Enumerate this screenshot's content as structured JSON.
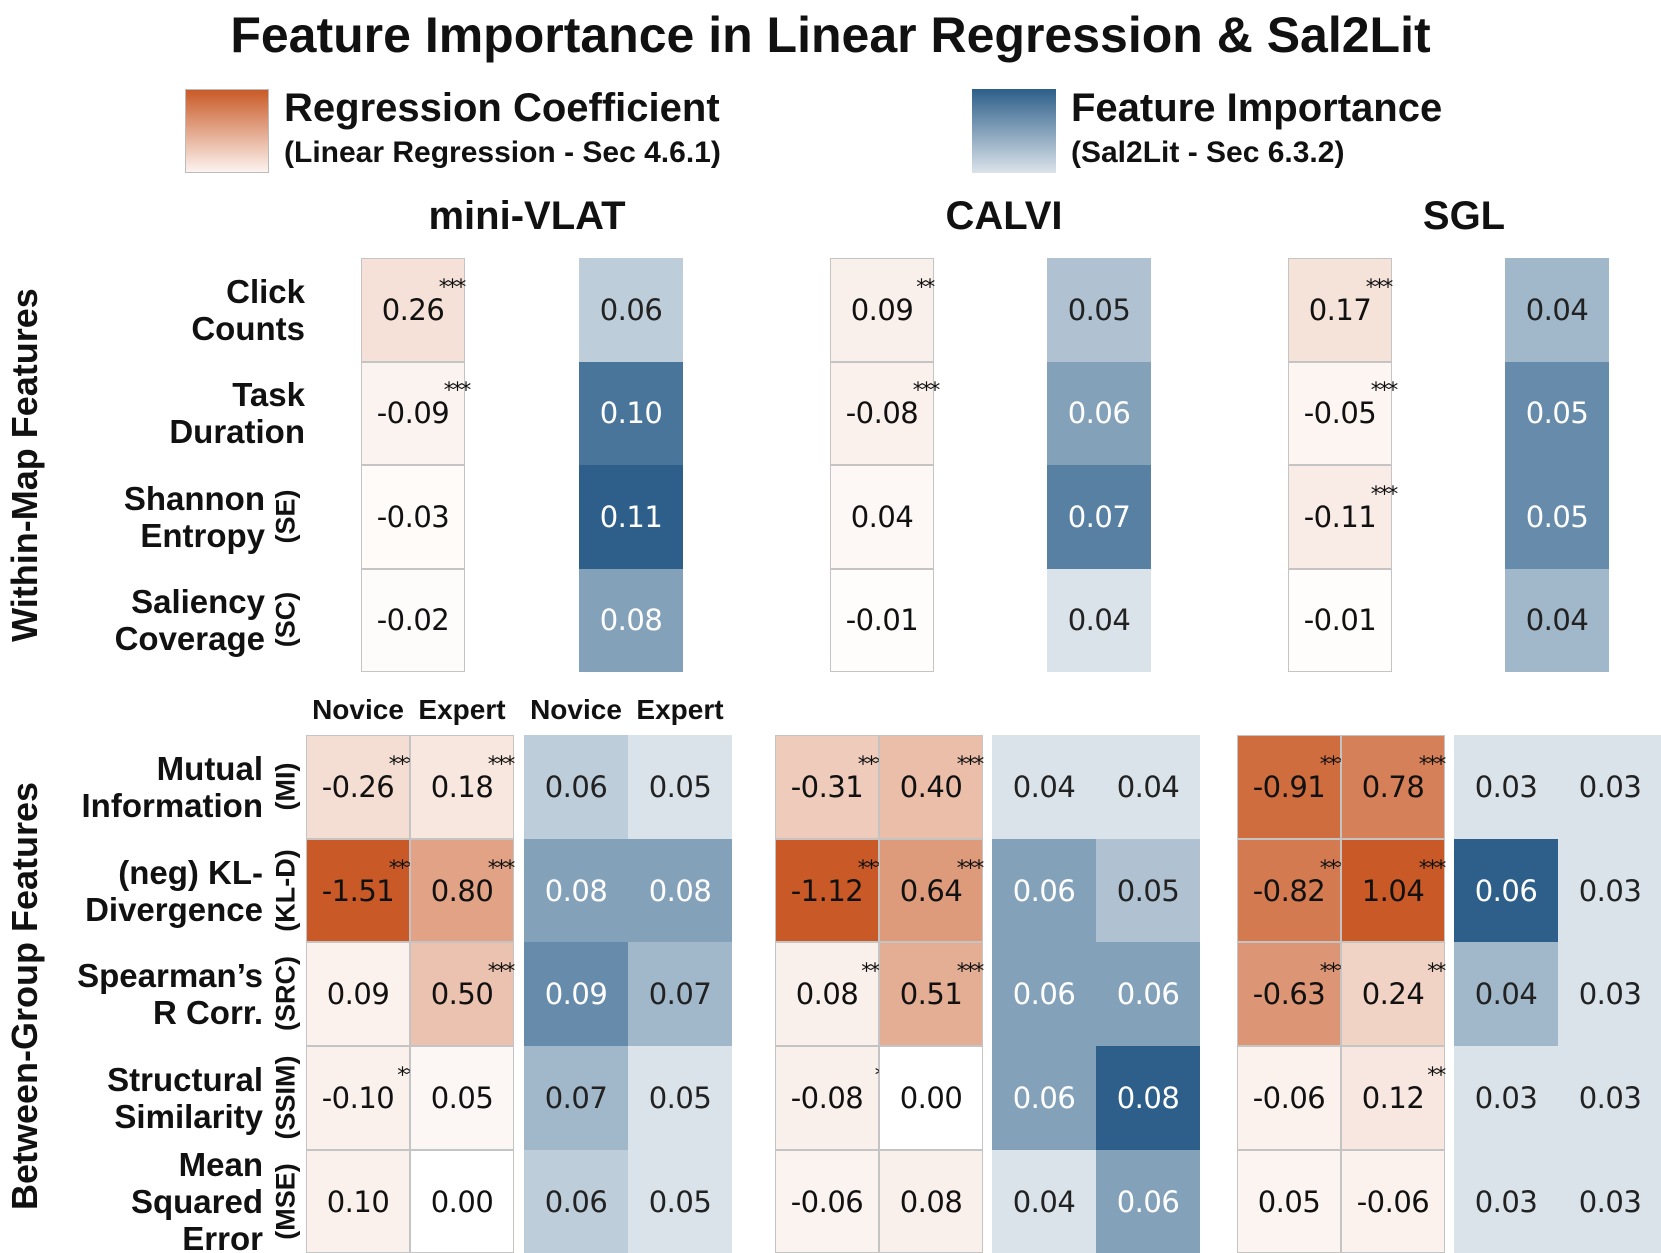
{
  "chart_data": {
    "type": "heatmap",
    "title": "Feature Importance in Linear Regression & Sal2Lit",
    "legend": [
      {
        "label": "Regression Coefficient",
        "sublabel": "(Linear Regression - Sec 4.6.1)",
        "color": "#c95a27"
      },
      {
        "label": "Feature Importance",
        "sublabel": "(Sal2Lit - Sec 6.3.2)",
        "color": "#2d5f8a"
      }
    ],
    "sections": {
      "within": "Within-Map Features",
      "between": "Between-Group Features"
    },
    "group_headers": [
      "Novice",
      "Expert",
      "Novice",
      "Expert"
    ],
    "within_rows": [
      {
        "lines": [
          "Click",
          "Counts"
        ],
        "abbr": ""
      },
      {
        "lines": [
          "Task",
          "Duration"
        ],
        "abbr": ""
      },
      {
        "lines": [
          "Shannon",
          "Entropy"
        ],
        "abbr": "(SE)"
      },
      {
        "lines": [
          "Saliency",
          "Coverage"
        ],
        "abbr": "(SC)"
      }
    ],
    "between_rows": [
      {
        "lines": [
          "Mutual",
          "Information"
        ],
        "abbr": "(MI)"
      },
      {
        "lines": [
          "(neg) KL-",
          "Divergence"
        ],
        "abbr": "(KL-D)"
      },
      {
        "lines": [
          "Spearman’s",
          "R Corr."
        ],
        "abbr": "(SRC)"
      },
      {
        "lines": [
          "Structural",
          "Similarity"
        ],
        "abbr": "(SSIM)"
      },
      {
        "lines": [
          "Mean",
          "Squared",
          "Error"
        ],
        "abbr": "(MSE)"
      }
    ],
    "datasets": [
      {
        "name": "mini-VLAT",
        "within": {
          "coefficient": [
            {
              "v": "0.26",
              "s": "***"
            },
            {
              "v": "-0.09",
              "s": "***"
            },
            {
              "v": "-0.03",
              "s": ""
            },
            {
              "v": "-0.02",
              "s": ""
            }
          ],
          "importance": [
            "0.06",
            "0.10",
            "0.11",
            "0.08"
          ]
        },
        "between": {
          "coefficient_novice": [
            {
              "v": "-0.26",
              "s": "***"
            },
            {
              "v": "-1.51",
              "s": "***"
            },
            {
              "v": "0.09",
              "s": ""
            },
            {
              "v": "-0.10",
              "s": "**"
            },
            {
              "v": "0.10",
              "s": ""
            }
          ],
          "coefficient_expert": [
            {
              "v": "0.18",
              "s": "***"
            },
            {
              "v": "0.80",
              "s": "***"
            },
            {
              "v": "0.50",
              "s": "***"
            },
            {
              "v": "0.05",
              "s": ""
            },
            {
              "v": "0.00",
              "s": ""
            }
          ],
          "importance_novice": [
            "0.06",
            "0.08",
            "0.09",
            "0.07",
            "0.06"
          ],
          "importance_expert": [
            "0.05",
            "0.08",
            "0.07",
            "0.05",
            "0.05"
          ]
        }
      },
      {
        "name": "CALVI",
        "within": {
          "coefficient": [
            {
              "v": "0.09",
              "s": "**"
            },
            {
              "v": "-0.08",
              "s": "***"
            },
            {
              "v": "0.04",
              "s": ""
            },
            {
              "v": "-0.01",
              "s": ""
            }
          ],
          "importance": [
            "0.05",
            "0.06",
            "0.07",
            "0.04"
          ]
        },
        "between": {
          "coefficient_novice": [
            {
              "v": "-0.31",
              "s": "***"
            },
            {
              "v": "-1.12",
              "s": "***"
            },
            {
              "v": "0.08",
              "s": "**"
            },
            {
              "v": "-0.08",
              "s": "*"
            },
            {
              "v": "-0.06",
              "s": ""
            }
          ],
          "coefficient_expert": [
            {
              "v": "0.40",
              "s": "***"
            },
            {
              "v": "0.64",
              "s": "***"
            },
            {
              "v": "0.51",
              "s": "***"
            },
            {
              "v": "0.00",
              "s": ""
            },
            {
              "v": "0.08",
              "s": ""
            }
          ],
          "importance_novice": [
            "0.04",
            "0.06",
            "0.06",
            "0.06",
            "0.04"
          ],
          "importance_expert": [
            "0.04",
            "0.05",
            "0.06",
            "0.08",
            "0.06"
          ]
        }
      },
      {
        "name": "SGL",
        "within": {
          "coefficient": [
            {
              "v": "0.17",
              "s": "***"
            },
            {
              "v": "-0.05",
              "s": "***"
            },
            {
              "v": "-0.11",
              "s": "***"
            },
            {
              "v": "-0.01",
              "s": ""
            }
          ],
          "importance": [
            "0.04",
            "0.05",
            "0.05",
            "0.04"
          ]
        },
        "between": {
          "coefficient_novice": [
            {
              "v": "-0.91",
              "s": "***"
            },
            {
              "v": "-0.82",
              "s": "***"
            },
            {
              "v": "-0.63",
              "s": "***"
            },
            {
              "v": "-0.06",
              "s": ""
            },
            {
              "v": "0.05",
              "s": ""
            }
          ],
          "coefficient_expert": [
            {
              "v": "0.78",
              "s": "***"
            },
            {
              "v": "1.04",
              "s": "***"
            },
            {
              "v": "0.24",
              "s": "**"
            },
            {
              "v": "0.12",
              "s": "**"
            },
            {
              "v": "-0.06",
              "s": ""
            }
          ],
          "importance_novice": [
            "0.03",
            "0.06",
            "0.04",
            "0.03",
            "0.03"
          ],
          "importance_expert": [
            "0.03",
            "0.03",
            "0.03",
            "0.03",
            "0.03"
          ]
        }
      }
    ]
  }
}
